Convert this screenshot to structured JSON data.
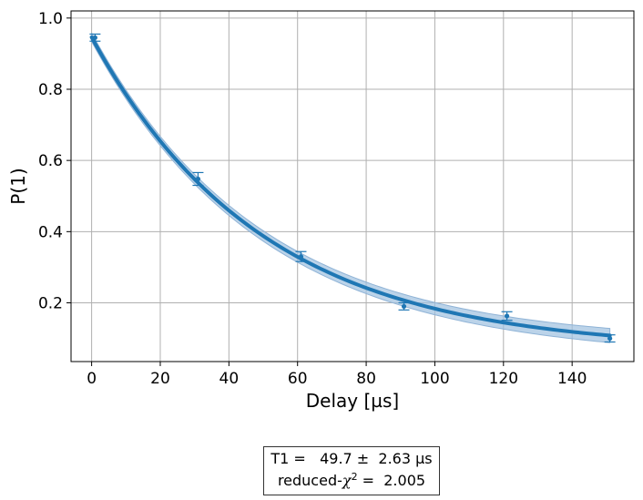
{
  "chart_data": {
    "type": "scatter",
    "xlabel": "Delay [µs]",
    "ylabel": "P(1)",
    "xlim": [
      -6,
      158
    ],
    "ylim": [
      0.035,
      1.02
    ],
    "grid": true,
    "x_ticks": [
      0,
      20,
      40,
      60,
      80,
      100,
      120,
      140
    ],
    "y_ticks": [
      0.2,
      0.4,
      0.6,
      0.8,
      1.0
    ],
    "x_tick_labels": [
      "0",
      "20",
      "40",
      "60",
      "80",
      "100",
      "120",
      "140"
    ],
    "y_tick_labels": [
      "0.2",
      "0.4",
      "0.6",
      "0.8",
      "1.0"
    ],
    "series": [
      {
        "kind": "data-with-errorbars",
        "x": [
          1,
          31,
          61,
          91,
          121,
          151
        ],
        "y": [
          0.945,
          0.548,
          0.33,
          0.19,
          0.163,
          0.1
        ],
        "yerr": [
          0.01,
          0.018,
          0.014,
          0.01,
          0.012,
          0.01
        ],
        "color": "#1f77b4"
      },
      {
        "kind": "fit-curve",
        "model": "A*exp(-x/T1)+B",
        "params": {
          "A": 0.88,
          "T1": 49.7,
          "B": 0.066
        },
        "x_range": [
          0,
          151
        ],
        "band_halfwidth": [
          0.012,
          0.02
        ],
        "color": "#1f77b4",
        "band_color": "#9ec0e0"
      }
    ],
    "annotation": {
      "line1": "T1 =   49.7 ±  2.63 µs",
      "line2_prefix": "reduced-",
      "line2_symbol": "χ",
      "line2_sup": "2",
      "line2_suffix": " =  2.005"
    }
  }
}
